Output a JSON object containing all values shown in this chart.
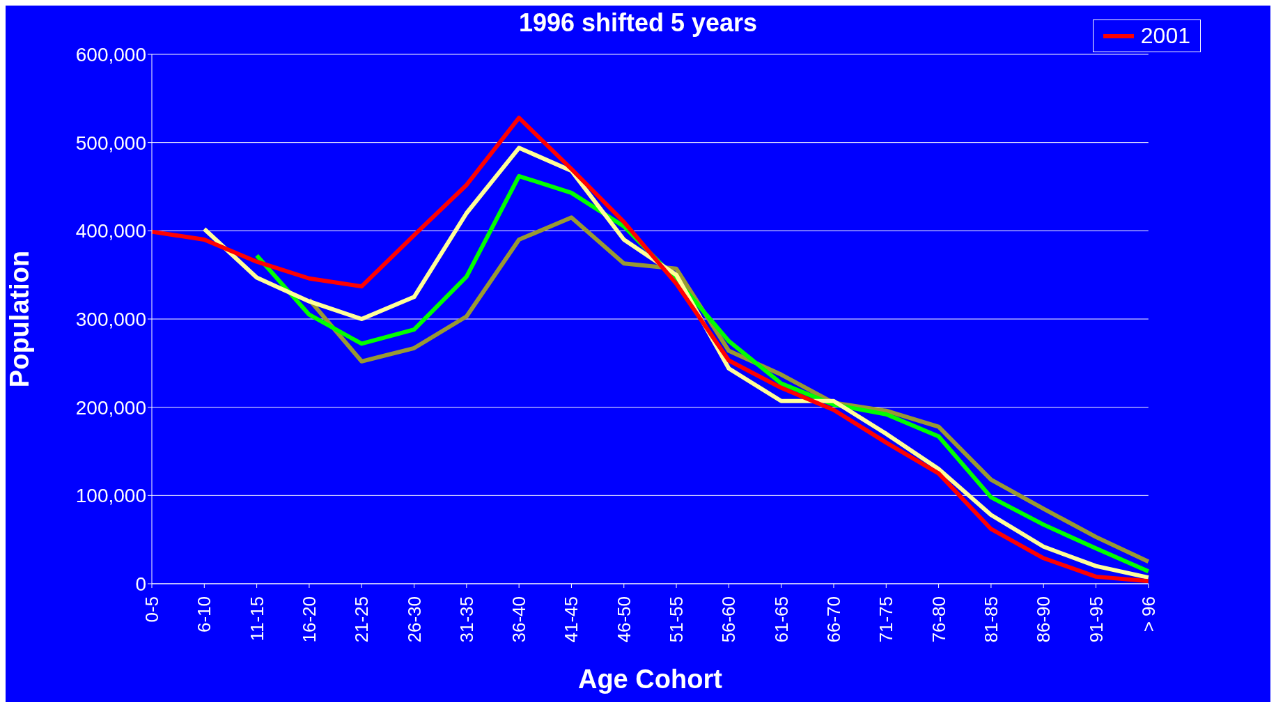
{
  "chart_data": {
    "type": "line",
    "title": "1996 shifted 5 years",
    "xlabel": "Age Cohort",
    "ylabel": "Population",
    "categories": [
      "0-5",
      "6-10",
      "11-15",
      "16-20",
      "21-25",
      "26-30",
      "31-35",
      "36-40",
      "41-45",
      "46-50",
      "51-55",
      "56-60",
      "61-65",
      "66-70",
      "71-75",
      "76-80",
      "81-85",
      "86-90",
      "91-95",
      "> 96"
    ],
    "series": [
      {
        "color": "#999933",
        "values": [
          null,
          null,
          null,
          322000,
          252000,
          267000,
          303000,
          390000,
          415000,
          363000,
          357000,
          264000,
          237000,
          205000,
          196000,
          178000,
          118000,
          85000,
          53000,
          25000
        ]
      },
      {
        "color": "#00ff00",
        "values": [
          null,
          null,
          372000,
          305000,
          272000,
          288000,
          348000,
          462000,
          443000,
          405000,
          345000,
          275000,
          227000,
          203000,
          192000,
          167000,
          98000,
          67000,
          40000,
          14000
        ]
      },
      {
        "color": "#ffff99",
        "values": [
          null,
          402000,
          347000,
          320000,
          300000,
          325000,
          420000,
          494000,
          468000,
          390000,
          350000,
          244000,
          207000,
          207000,
          170000,
          130000,
          78000,
          42000,
          20000,
          7000
        ]
      },
      {
        "name": "2001",
        "color": "#ff0000",
        "values": [
          399000,
          390000,
          365000,
          346000,
          337000,
          395000,
          452000,
          528000,
          470000,
          410000,
          340000,
          253000,
          222000,
          197000,
          160000,
          125000,
          62000,
          29000,
          8000,
          3000
        ]
      }
    ],
    "ylim": [
      0,
      600000
    ],
    "yticks": [
      0,
      {
        "value": 100000,
        "label": "100,000"
      },
      {
        "value": 200000,
        "label": "200,000"
      },
      {
        "value": 300000,
        "label": "300,000"
      },
      {
        "value": 400000,
        "label": "400,000"
      },
      {
        "value": 500000,
        "label": "500,000"
      },
      {
        "value": 600000,
        "label": "600,000"
      }
    ],
    "grid": "y",
    "legend": "top right",
    "marker": "none",
    "line_style": "solid"
  }
}
